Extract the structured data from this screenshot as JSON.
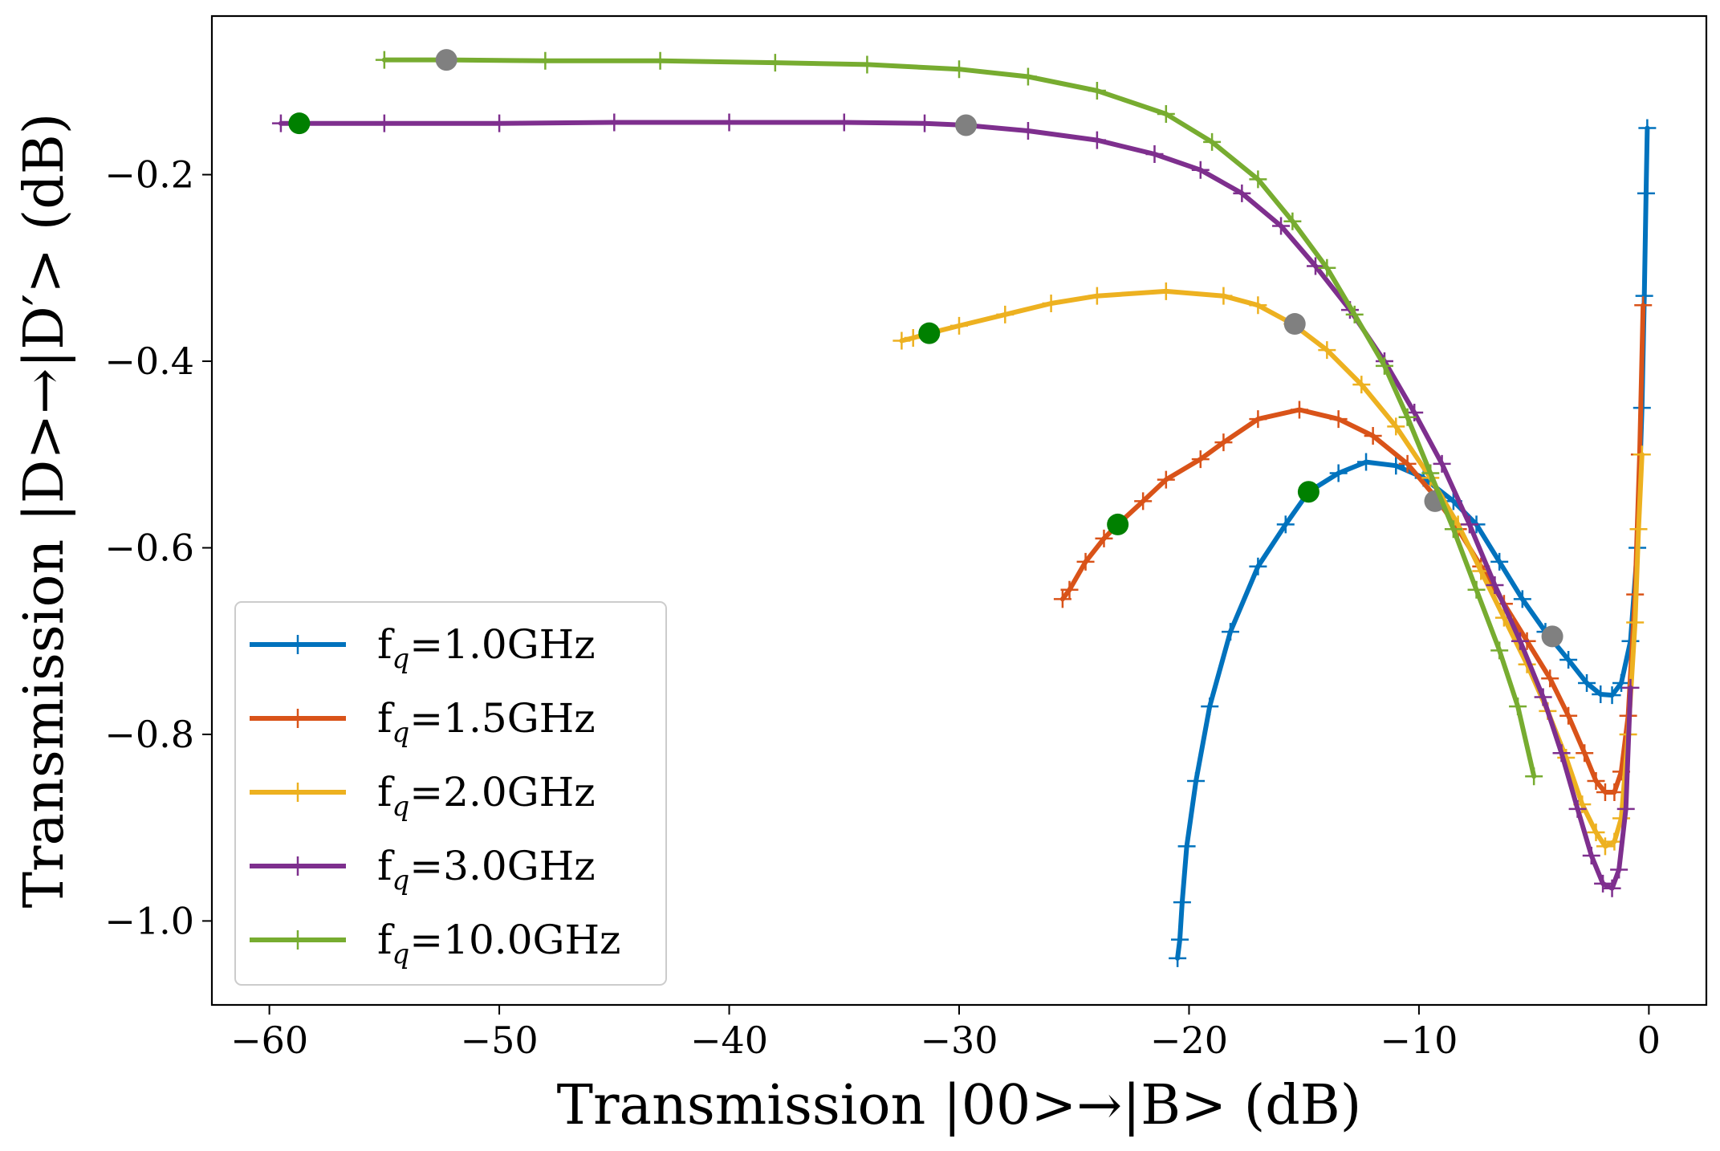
{
  "chart_data": {
    "type": "line",
    "title": "",
    "xlabel": "Transmission |00>→|B> (dB)",
    "ylabel": "Transmission |D>→|D′> (dB)",
    "xlim": [
      -62.5,
      2.5
    ],
    "ylim": [
      -1.09,
      -0.03
    ],
    "xticks": [
      -60,
      -50,
      -40,
      -30,
      -20,
      -10,
      0
    ],
    "yticks": [
      -0.2,
      -0.4,
      -0.6,
      -0.8,
      -1.0
    ],
    "xtick_labels": [
      "−60",
      "−50",
      "−40",
      "−30",
      "−20",
      "−10",
      "0"
    ],
    "ytick_labels": [
      "−0.2",
      "−0.4",
      "−0.6",
      "−0.8",
      "−1.0"
    ],
    "legend_position": "lower-left",
    "series": [
      {
        "name": "f_q=1.0GHz",
        "label_main": "f",
        "label_sub": "q",
        "label_rest": "=1.0GHz",
        "color": "#0072BD",
        "points": [
          [
            -20.5,
            -1.04
          ],
          [
            -20.4,
            -1.02
          ],
          [
            -20.3,
            -0.98
          ],
          [
            -20.1,
            -0.92
          ],
          [
            -19.7,
            -0.85
          ],
          [
            -19.1,
            -0.77
          ],
          [
            -18.2,
            -0.69
          ],
          [
            -17.0,
            -0.62
          ],
          [
            -15.8,
            -0.575
          ],
          [
            -14.8,
            -0.54
          ],
          [
            -13.5,
            -0.52
          ],
          [
            -12.3,
            -0.508
          ],
          [
            -11.0,
            -0.512
          ],
          [
            -9.8,
            -0.525
          ],
          [
            -8.5,
            -0.55
          ],
          [
            -7.5,
            -0.575
          ],
          [
            -6.5,
            -0.615
          ],
          [
            -5.5,
            -0.655
          ],
          [
            -4.5,
            -0.69
          ],
          [
            -3.5,
            -0.72
          ],
          [
            -2.7,
            -0.745
          ],
          [
            -2.1,
            -0.757
          ],
          [
            -1.6,
            -0.758
          ],
          [
            -1.2,
            -0.745
          ],
          [
            -0.8,
            -0.7
          ],
          [
            -0.5,
            -0.6
          ],
          [
            -0.3,
            -0.45
          ],
          [
            -0.2,
            -0.33
          ],
          [
            -0.12,
            -0.22
          ],
          [
            -0.07,
            -0.15
          ]
        ],
        "markers": [
          {
            "x": -14.8,
            "y": -0.54,
            "color": "#008000"
          },
          {
            "x": -4.2,
            "y": -0.695,
            "color": "#808080"
          }
        ]
      },
      {
        "name": "f_q=1.5GHz",
        "label_main": "f",
        "label_sub": "q",
        "label_rest": "=1.5GHz",
        "color": "#D95319",
        "points": [
          [
            -25.5,
            -0.655
          ],
          [
            -25.2,
            -0.645
          ],
          [
            -24.5,
            -0.615
          ],
          [
            -23.7,
            -0.59
          ],
          [
            -23.1,
            -0.575
          ],
          [
            -22.0,
            -0.55
          ],
          [
            -21.0,
            -0.527
          ],
          [
            -19.5,
            -0.505
          ],
          [
            -18.5,
            -0.487
          ],
          [
            -17.0,
            -0.462
          ],
          [
            -15.2,
            -0.452
          ],
          [
            -13.5,
            -0.462
          ],
          [
            -12.0,
            -0.48
          ],
          [
            -10.5,
            -0.51
          ],
          [
            -9.3,
            -0.545
          ],
          [
            -8.3,
            -0.58
          ],
          [
            -7.3,
            -0.62
          ],
          [
            -6.3,
            -0.66
          ],
          [
            -5.3,
            -0.7
          ],
          [
            -4.3,
            -0.74
          ],
          [
            -3.5,
            -0.78
          ],
          [
            -2.8,
            -0.82
          ],
          [
            -2.3,
            -0.85
          ],
          [
            -1.9,
            -0.862
          ],
          [
            -1.5,
            -0.862
          ],
          [
            -1.2,
            -0.84
          ],
          [
            -0.9,
            -0.78
          ],
          [
            -0.6,
            -0.65
          ],
          [
            -0.4,
            -0.5
          ],
          [
            -0.25,
            -0.34
          ]
        ],
        "markers": [
          {
            "x": -23.1,
            "y": -0.575,
            "color": "#008000"
          },
          {
            "x": -9.3,
            "y": -0.55,
            "color": "#808080"
          }
        ]
      },
      {
        "name": "f_q=2.0GHz",
        "label_main": "f",
        "label_sub": "q",
        "label_rest": "=2.0GHz",
        "color": "#EDB120",
        "points": [
          [
            -32.5,
            -0.378
          ],
          [
            -32.0,
            -0.375
          ],
          [
            -31.3,
            -0.37
          ],
          [
            -30.0,
            -0.362
          ],
          [
            -28.0,
            -0.35
          ],
          [
            -26.0,
            -0.338
          ],
          [
            -24.0,
            -0.33
          ],
          [
            -21.0,
            -0.325
          ],
          [
            -18.5,
            -0.33
          ],
          [
            -17.0,
            -0.34
          ],
          [
            -15.5,
            -0.36
          ],
          [
            -14.0,
            -0.388
          ],
          [
            -12.5,
            -0.425
          ],
          [
            -11.0,
            -0.47
          ],
          [
            -9.5,
            -0.525
          ],
          [
            -8.3,
            -0.575
          ],
          [
            -7.3,
            -0.625
          ],
          [
            -6.3,
            -0.675
          ],
          [
            -5.3,
            -0.725
          ],
          [
            -4.4,
            -0.775
          ],
          [
            -3.6,
            -0.825
          ],
          [
            -2.9,
            -0.875
          ],
          [
            -2.3,
            -0.905
          ],
          [
            -1.9,
            -0.92
          ],
          [
            -1.5,
            -0.915
          ],
          [
            -1.2,
            -0.89
          ],
          [
            -0.9,
            -0.8
          ],
          [
            -0.6,
            -0.68
          ],
          [
            -0.45,
            -0.58
          ],
          [
            -0.3,
            -0.5
          ]
        ],
        "markers": [
          {
            "x": -31.3,
            "y": -0.37,
            "color": "#008000"
          },
          {
            "x": -15.4,
            "y": -0.36,
            "color": "#808080"
          }
        ]
      },
      {
        "name": "f_q=3.0GHz",
        "label_main": "f",
        "label_sub": "q",
        "label_rest": "=3.0GHz",
        "color": "#7E2F8E",
        "points": [
          [
            -59.5,
            -0.145
          ],
          [
            -58.7,
            -0.145
          ],
          [
            -55.0,
            -0.145
          ],
          [
            -50.0,
            -0.145
          ],
          [
            -45.0,
            -0.144
          ],
          [
            -40.0,
            -0.144
          ],
          [
            -35.0,
            -0.144
          ],
          [
            -31.5,
            -0.145
          ],
          [
            -29.7,
            -0.147
          ],
          [
            -27.0,
            -0.153
          ],
          [
            -24.0,
            -0.163
          ],
          [
            -21.5,
            -0.178
          ],
          [
            -19.5,
            -0.195
          ],
          [
            -17.7,
            -0.22
          ],
          [
            -16.0,
            -0.255
          ],
          [
            -14.5,
            -0.298
          ],
          [
            -13.0,
            -0.345
          ],
          [
            -11.5,
            -0.4
          ],
          [
            -10.2,
            -0.455
          ],
          [
            -9.0,
            -0.51
          ],
          [
            -7.8,
            -0.575
          ],
          [
            -6.7,
            -0.64
          ],
          [
            -5.6,
            -0.7
          ],
          [
            -4.6,
            -0.76
          ],
          [
            -3.8,
            -0.82
          ],
          [
            -3.1,
            -0.88
          ],
          [
            -2.5,
            -0.93
          ],
          [
            -2.0,
            -0.96
          ],
          [
            -1.6,
            -0.965
          ],
          [
            -1.3,
            -0.945
          ],
          [
            -1.0,
            -0.88
          ],
          [
            -0.8,
            -0.75
          ]
        ],
        "markers": [
          {
            "x": -58.7,
            "y": -0.145,
            "color": "#008000"
          },
          {
            "x": -29.7,
            "y": -0.147,
            "color": "#808080"
          }
        ]
      },
      {
        "name": "f_q=10.0GHz",
        "label_main": "f",
        "label_sub": "q",
        "label_rest": "=10.0GHz",
        "color": "#77AC30",
        "points": [
          [
            -55.0,
            -0.077
          ],
          [
            -52.3,
            -0.077
          ],
          [
            -48.0,
            -0.078
          ],
          [
            -43.0,
            -0.078
          ],
          [
            -38.0,
            -0.08
          ],
          [
            -34.0,
            -0.082
          ],
          [
            -30.0,
            -0.087
          ],
          [
            -27.0,
            -0.095
          ],
          [
            -24.0,
            -0.11
          ],
          [
            -21.0,
            -0.135
          ],
          [
            -19.0,
            -0.165
          ],
          [
            -17.0,
            -0.205
          ],
          [
            -15.5,
            -0.25
          ],
          [
            -14.0,
            -0.3
          ],
          [
            -12.8,
            -0.35
          ],
          [
            -11.5,
            -0.405
          ],
          [
            -10.5,
            -0.46
          ],
          [
            -9.5,
            -0.52
          ],
          [
            -8.5,
            -0.58
          ],
          [
            -7.5,
            -0.645
          ],
          [
            -6.5,
            -0.71
          ],
          [
            -5.7,
            -0.77
          ],
          [
            -5.0,
            -0.845
          ]
        ],
        "markers": [
          {
            "x": -52.3,
            "y": -0.077,
            "color": "#808080"
          }
        ]
      }
    ]
  }
}
